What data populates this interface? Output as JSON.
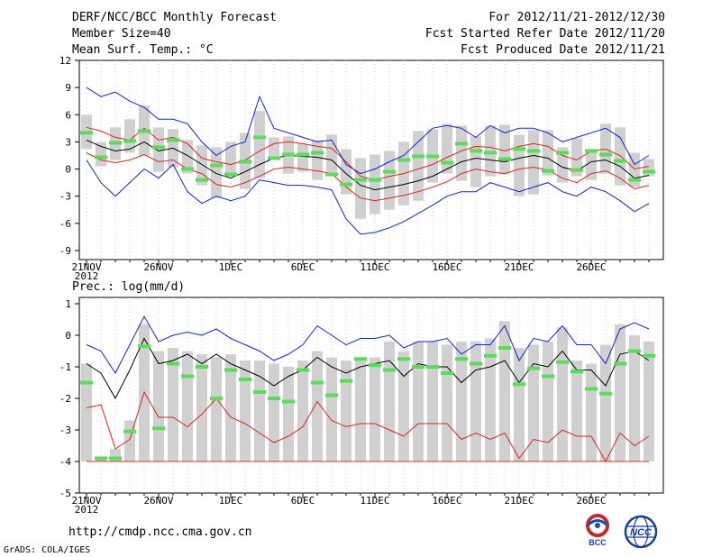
{
  "header": {
    "title": "DERF/NCC/BCC Monthly Forecast",
    "member_size": "Member Size=40",
    "variable": "Mean Surf. Temp.: °C",
    "forecast_period": "For 2012/11/21-2012/12/30",
    "fcst_started": "Fcst Started Refer Date 2012/11/20",
    "fcst_produced": "Fcst Produced Date 2012/11/21"
  },
  "precip_label": "Prec.: log(mm/d)",
  "footer": {
    "url": "http://cmdp.ncc.cma.gov.cn",
    "credit": "GrADS: COLA/IGES",
    "logo_left_text": "BCC",
    "logo_right_text": "NCC"
  },
  "colors": {
    "grid": "#c8c8c8",
    "box": "#d0d0d0",
    "median": "#55e055",
    "ensemble_mean": "#000000",
    "spread_red": "#e02020",
    "spread_blue": "#1020e0"
  },
  "chart_data": [
    {
      "type": "line",
      "name": "temperature",
      "ylabel": "Mean Surf. Temp.: °C",
      "ylim": [
        -10,
        12
      ],
      "yticks": [
        -9,
        -6,
        -3,
        0,
        3,
        6,
        9,
        12
      ],
      "x_day_range": [
        1,
        40
      ],
      "x_tick_days": [
        1,
        6,
        11,
        16,
        21,
        26,
        31,
        36
      ],
      "x_tick_labels": [
        "21NOV",
        "26NOV",
        "1DEC",
        "6DEC",
        "11DEC",
        "16DEC",
        "21DEC",
        "26DEC"
      ],
      "x_sub_label": "2012",
      "box_low": [
        2.2,
        0.3,
        1.0,
        1.8,
        1.5,
        -0.3,
        0.2,
        -0.5,
        -1.8,
        -3.2,
        -0.8,
        -2.2,
        -1.0,
        1.0,
        -0.5,
        -0.3,
        -1.2,
        -0.5,
        -2.8,
        -5.5,
        -5.0,
        -4.5,
        -4.0,
        -3.5,
        -1.5,
        -0.5,
        -1.3,
        -2.0,
        -0.8,
        -0.6,
        -3.0,
        -2.8,
        -0.7,
        -1.5,
        -0.8,
        -1.2,
        -0.5,
        -1.8,
        -2.0,
        -0.8
      ],
      "box_high": [
        6.0,
        3.0,
        4.6,
        5.5,
        7.0,
        4.6,
        4.4,
        3.2,
        2.6,
        2.4,
        3.0,
        4.0,
        6.4,
        3.5,
        3.6,
        2.8,
        3.2,
        3.8,
        2.2,
        1.2,
        1.6,
        2.0,
        3.0,
        4.2,
        4.4,
        5.0,
        4.8,
        3.6,
        4.8,
        4.9,
        3.8,
        4.3,
        4.3,
        2.4,
        3.4,
        2.2,
        5.0,
        4.6,
        1.8,
        1.1
      ],
      "median": [
        4.0,
        1.3,
        2.9,
        3.1,
        4.2,
        2.4,
        3.2,
        0.0,
        -1.2,
        0.4,
        -0.6,
        0.8,
        3.5,
        1.2,
        1.6,
        1.6,
        1.8,
        -0.6,
        -1.7,
        -1.2,
        -1.2,
        -0.3,
        1.0,
        1.4,
        1.4,
        0.7,
        2.8,
        2.0,
        1.8,
        1.1,
        2.2,
        2.0,
        -0.2,
        1.8,
        -0.1,
        2.0,
        1.6,
        0.9,
        -1.2,
        -0.3
      ],
      "series": [
        {
          "name": "ensemble_mean",
          "values": [
            3.2,
            2.5,
            2.0,
            2.2,
            3.0,
            2.0,
            2.3,
            1.5,
            0.5,
            -0.5,
            -1.0,
            -0.3,
            0.5,
            1.2,
            1.5,
            1.4,
            1.3,
            1.0,
            -0.5,
            -1.8,
            -2.3,
            -2.0,
            -1.7,
            -1.3,
            -0.8,
            0.0,
            0.8,
            1.2,
            1.0,
            0.8,
            1.2,
            1.5,
            1.2,
            0.2,
            -0.2,
            0.8,
            1.0,
            0.3,
            -1.0,
            -0.7
          ]
        },
        {
          "name": "upper_red",
          "values": [
            4.6,
            4.2,
            3.5,
            3.2,
            4.5,
            3.2,
            3.5,
            2.8,
            1.2,
            0.8,
            0.5,
            1.0,
            2.0,
            2.8,
            3.0,
            2.8,
            2.5,
            2.3,
            0.8,
            -0.8,
            -1.2,
            -0.8,
            -0.5,
            0.0,
            0.5,
            1.3,
            2.0,
            2.5,
            2.4,
            2.0,
            2.5,
            2.8,
            2.5,
            1.5,
            1.0,
            2.0,
            2.2,
            1.5,
            0.0,
            0.3
          ]
        },
        {
          "name": "lower_red",
          "values": [
            1.8,
            1.0,
            0.7,
            1.0,
            1.6,
            0.8,
            1.0,
            0.0,
            -0.5,
            -1.7,
            -2.0,
            -1.5,
            -0.8,
            0.0,
            0.2,
            0.0,
            -0.2,
            -0.5,
            -2.0,
            -3.2,
            -3.5,
            -3.2,
            -2.9,
            -2.5,
            -2.0,
            -1.4,
            -0.5,
            0.0,
            -0.3,
            -0.5,
            0.0,
            0.2,
            -0.1,
            -1.0,
            -1.5,
            -0.5,
            -0.2,
            -1.0,
            -2.2,
            -1.8
          ]
        },
        {
          "name": "upper_blue",
          "values": [
            9.0,
            8.0,
            8.5,
            7.5,
            6.8,
            5.5,
            5.5,
            5.0,
            3.0,
            1.5,
            2.5,
            3.0,
            8.0,
            4.5,
            4.0,
            3.5,
            3.0,
            3.2,
            0.5,
            -0.5,
            0.0,
            0.8,
            1.5,
            3.0,
            4.5,
            4.8,
            4.5,
            3.5,
            4.8,
            4.0,
            4.5,
            4.5,
            4.0,
            3.0,
            3.5,
            4.0,
            4.5,
            3.5,
            0.5,
            1.5
          ]
        },
        {
          "name": "lower_blue",
          "values": [
            1.0,
            -1.5,
            -3.0,
            -1.5,
            0.0,
            -1.0,
            0.5,
            -2.5,
            -3.8,
            -3.0,
            -3.5,
            -3.0,
            -1.2,
            -1.5,
            -1.8,
            -1.8,
            -2.0,
            -2.3,
            -5.5,
            -7.2,
            -7.0,
            -6.5,
            -5.8,
            -4.9,
            -4.0,
            -3.0,
            -2.5,
            -2.5,
            -1.5,
            -2.0,
            -2.5,
            -2.0,
            -1.5,
            -2.5,
            -3.0,
            -2.0,
            -2.5,
            -3.5,
            -4.7,
            -3.8
          ]
        }
      ]
    },
    {
      "type": "line",
      "name": "precipitation",
      "ylabel": "Prec.: log(mm/d)",
      "ylim": [
        -5,
        1.2
      ],
      "yticks": [
        -5,
        -4,
        -3,
        -2,
        -1,
        0,
        1
      ],
      "x_day_range": [
        1,
        40
      ],
      "x_tick_days": [
        1,
        6,
        11,
        16,
        21,
        26,
        31,
        36
      ],
      "x_tick_labels": [
        "21NOV",
        "26NOV",
        "1DEC",
        "6DEC",
        "11DEC",
        "16DEC",
        "21DEC",
        "26DEC"
      ],
      "x_sub_label": "2012",
      "box_low": -4,
      "box_high": [
        -0.9,
        -3.9,
        -3.6,
        -2.7,
        0.35,
        -0.5,
        -0.4,
        -0.5,
        -0.6,
        -0.7,
        -0.6,
        -0.8,
        -0.8,
        -0.9,
        -1.0,
        -0.8,
        -0.5,
        -0.7,
        -0.8,
        -0.7,
        -0.7,
        -0.2,
        -0.5,
        -0.2,
        -0.2,
        -0.3,
        -0.2,
        -0.2,
        -0.1,
        0.45,
        -0.4,
        -0.3,
        -0.2,
        0.25,
        -0.8,
        -0.9,
        -0.3,
        0.35,
        0.0,
        -0.2
      ],
      "median": [
        -1.5,
        -3.9,
        -3.9,
        -3.05,
        -0.35,
        -2.95,
        -0.9,
        -1.3,
        -1.0,
        -2.0,
        -1.1,
        -1.4,
        -1.8,
        -2.0,
        -2.1,
        -1.1,
        -1.5,
        -1.9,
        -1.45,
        -0.75,
        -0.95,
        -1.1,
        -0.75,
        -1.0,
        -1.0,
        -1.2,
        -0.75,
        -0.9,
        -0.65,
        -0.4,
        -1.55,
        -1.05,
        -1.3,
        -0.85,
        -1.15,
        -1.7,
        -1.85,
        -0.9,
        -0.5,
        -0.65
      ],
      "series": [
        {
          "name": "ensemble_mean",
          "values": [
            -0.9,
            -1.2,
            -2.0,
            -1.1,
            -0.1,
            -0.9,
            -0.8,
            -0.6,
            -0.9,
            -0.6,
            -0.9,
            -1.1,
            -1.3,
            -1.6,
            -1.3,
            -1.1,
            -0.7,
            -1.0,
            -1.2,
            -1.0,
            -0.9,
            -0.8,
            -1.3,
            -0.9,
            -1.0,
            -1.0,
            -1.5,
            -1.1,
            -1.0,
            -0.8,
            -1.5,
            -0.9,
            -1.0,
            -0.5,
            -1.1,
            -1.1,
            -1.6,
            -0.6,
            -0.5,
            -0.8
          ]
        },
        {
          "name": "upper_blue",
          "values": [
            -0.3,
            -0.5,
            -1.2,
            -0.3,
            0.6,
            -0.2,
            0.0,
            0.1,
            0.0,
            0.2,
            -0.1,
            -0.3,
            -0.5,
            -0.8,
            -0.6,
            -0.3,
            0.3,
            0.0,
            -0.3,
            -0.1,
            -0.1,
            0.0,
            -0.4,
            -0.2,
            -0.2,
            -0.1,
            -0.6,
            -0.3,
            -0.3,
            0.3,
            -0.8,
            -0.1,
            -0.2,
            0.3,
            -0.3,
            -0.3,
            -0.9,
            0.2,
            0.4,
            0.2
          ]
        },
        {
          "name": "lower_red",
          "values": [
            -2.3,
            -2.2,
            -3.6,
            -3.3,
            -1.8,
            -2.6,
            -2.6,
            -2.9,
            -2.5,
            -2.0,
            -2.6,
            -2.8,
            -3.1,
            -3.4,
            -3.2,
            -2.9,
            -2.1,
            -2.7,
            -2.9,
            -2.8,
            -2.8,
            -3.0,
            -3.2,
            -2.8,
            -2.8,
            -2.8,
            -3.3,
            -3.1,
            -3.3,
            -3.1,
            -3.9,
            -3.3,
            -3.4,
            -3.0,
            -3.2,
            -3.2,
            -4.0,
            -3.1,
            -3.5,
            -3.2
          ]
        },
        {
          "name": "bottom_red",
          "values": [
            -4.0,
            -4.0,
            -4.0,
            -4.0,
            -4.0,
            -4.0,
            -4.0,
            -4.0,
            -4.0,
            -4.0,
            -4.0,
            -4.0,
            -4.0,
            -4.0,
            -4.0,
            -4.0,
            -4.0,
            -4.0,
            -4.0,
            -4.0,
            -4.0,
            -4.0,
            -4.0,
            -4.0,
            -4.0,
            -4.0,
            -4.0,
            -4.0,
            -4.0,
            -4.0,
            -4.0,
            -4.0,
            -4.0,
            -4.0,
            -4.0,
            -4.0,
            -4.0,
            -4.0,
            -4.0,
            -4.0
          ]
        }
      ]
    }
  ]
}
